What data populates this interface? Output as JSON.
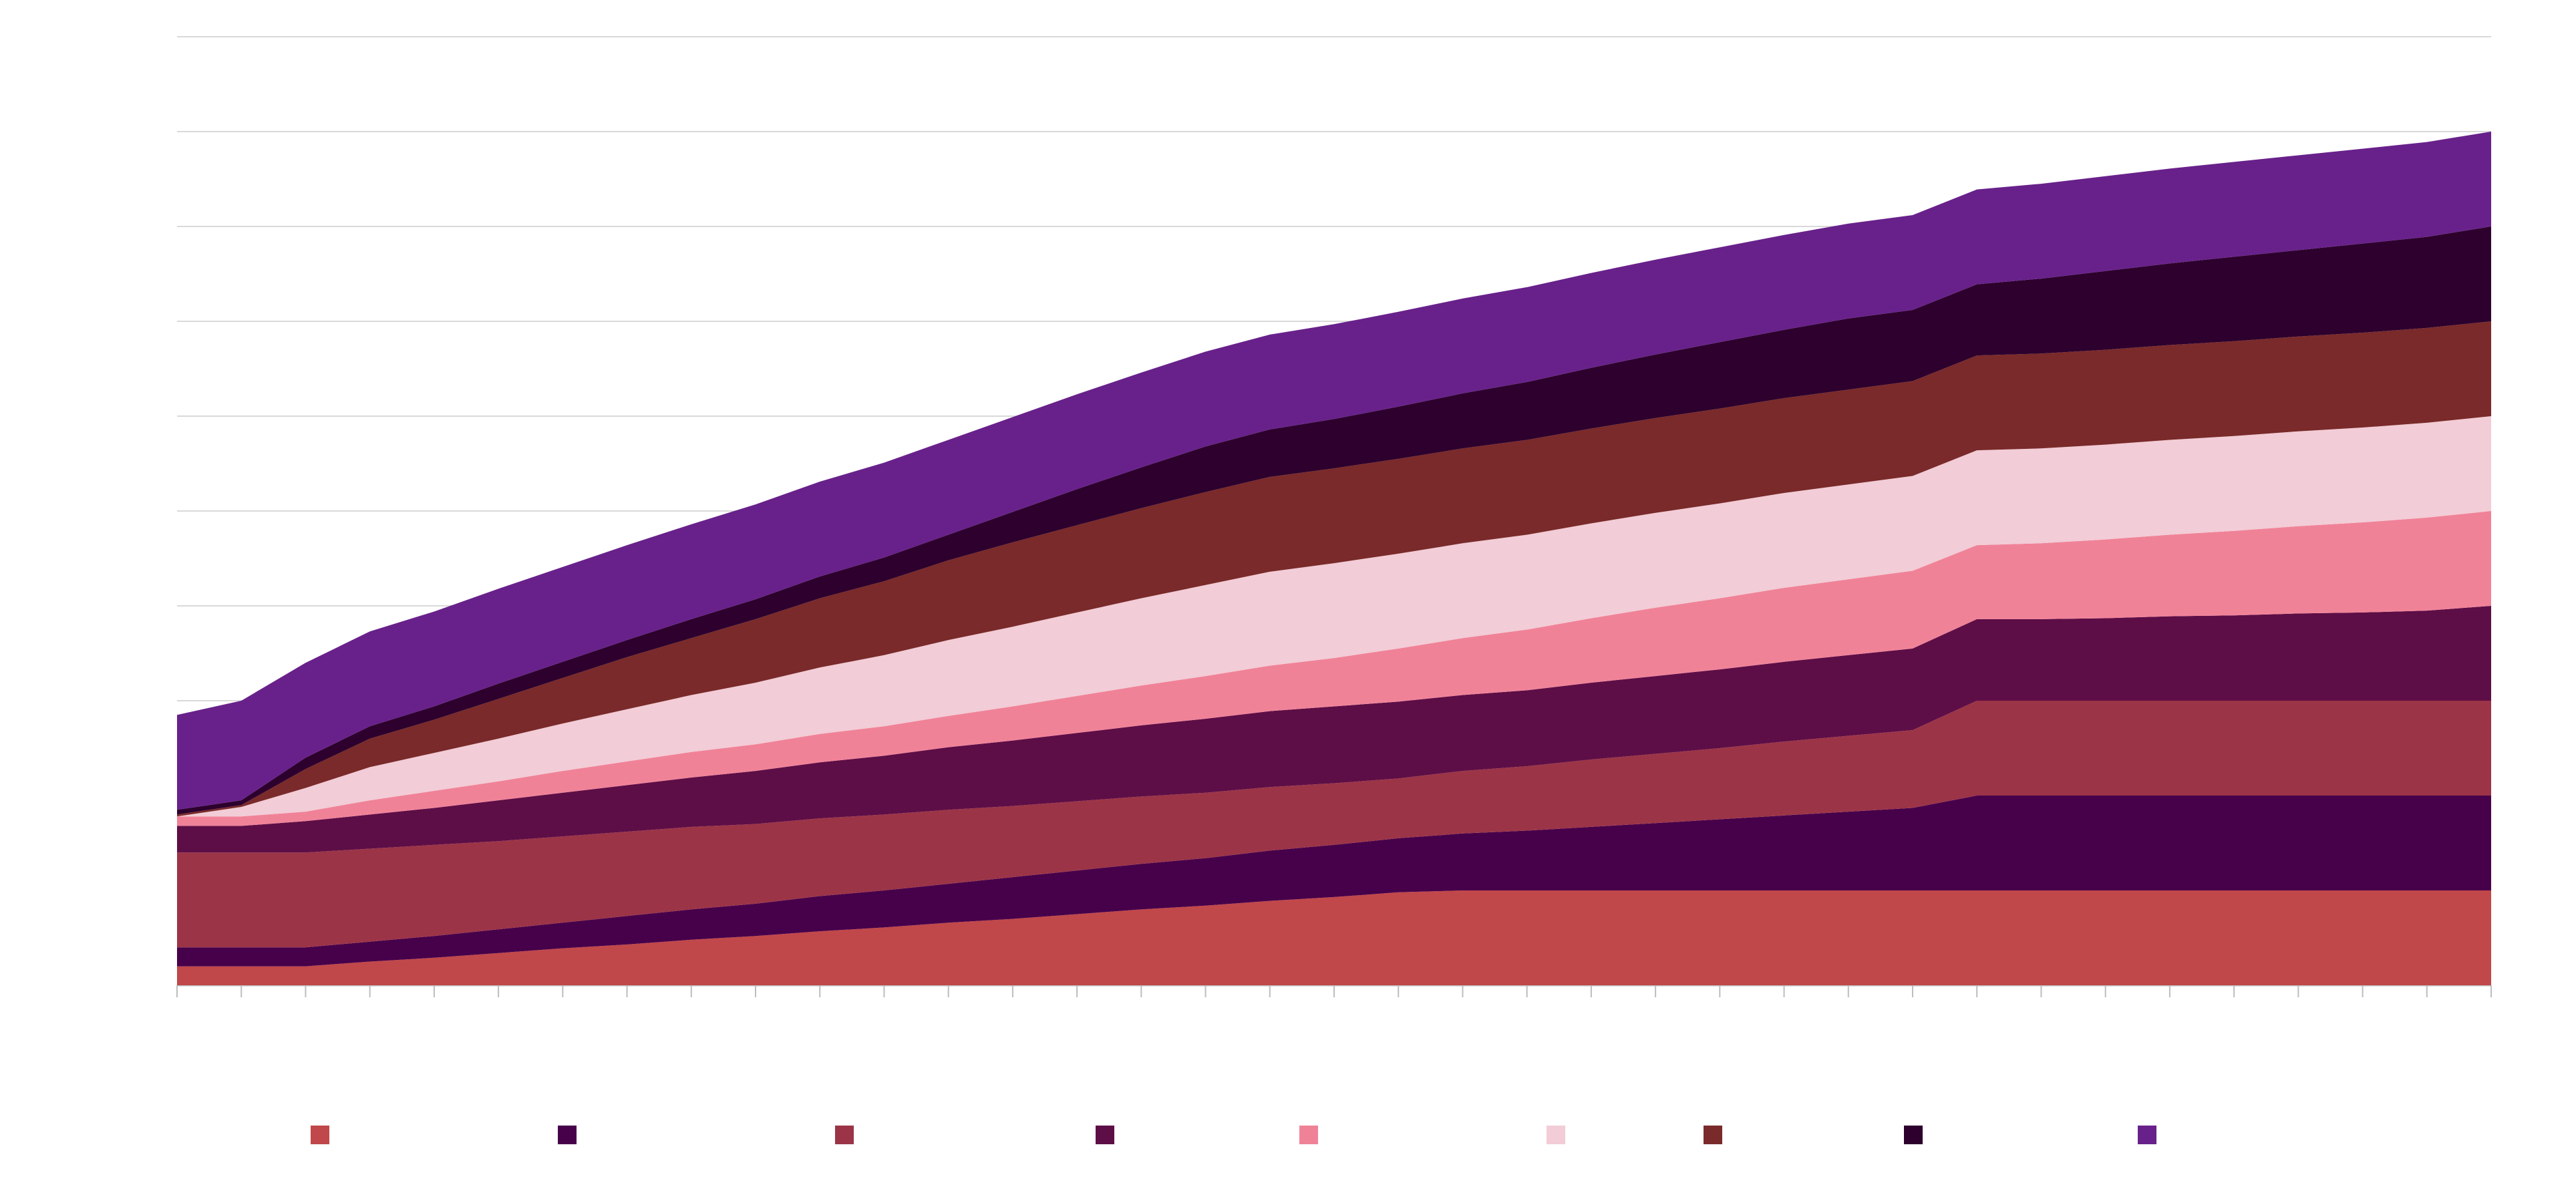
{
  "chart_data": {
    "type": "area",
    "stacked": true,
    "x": [
      0,
      1,
      2,
      3,
      4,
      5,
      6,
      7,
      8,
      9,
      10,
      11,
      12,
      13,
      14,
      15,
      16,
      17,
      18,
      19,
      20,
      21,
      22,
      23,
      24,
      25,
      26,
      27,
      28,
      29,
      30,
      31,
      32,
      33,
      34,
      35,
      36
    ],
    "ylim": [
      0,
      10
    ],
    "grid": true,
    "legend_position": "bottom",
    "series": [
      {
        "color": "#c0474a",
        "values": [
          0.2,
          0.2,
          0.2,
          0.25,
          0.29,
          0.34,
          0.39,
          0.43,
          0.48,
          0.52,
          0.57,
          0.61,
          0.66,
          0.7,
          0.75,
          0.8,
          0.84,
          0.89,
          0.93,
          0.98,
          1,
          1,
          1,
          1,
          1,
          1,
          1,
          1,
          1,
          1,
          1,
          1,
          1,
          1,
          1,
          1,
          1
        ]
      },
      {
        "color": "#47004a",
        "values": [
          0.2,
          0.2,
          0.2,
          0.21,
          0.23,
          0.25,
          0.27,
          0.3,
          0.32,
          0.34,
          0.37,
          0.39,
          0.41,
          0.44,
          0.46,
          0.48,
          0.5,
          0.53,
          0.55,
          0.57,
          0.6,
          0.63,
          0.67,
          0.71,
          0.75,
          0.79,
          0.83,
          0.87,
          1,
          1,
          1,
          1,
          1,
          1,
          1,
          1,
          1
        ]
      },
      {
        "color": "#9c3447",
        "values": [
          1,
          1,
          1,
          0.98,
          0.96,
          0.93,
          0.91,
          0.89,
          0.87,
          0.84,
          0.82,
          0.8,
          0.78,
          0.75,
          0.73,
          0.71,
          0.69,
          0.67,
          0.65,
          0.63,
          0.66,
          0.68,
          0.71,
          0.73,
          0.75,
          0.78,
          0.8,
          0.82,
          1,
          1,
          1,
          1,
          1,
          1,
          1,
          1,
          1
        ]
      },
      {
        "color": "#5e0e46",
        "values": [
          0.28,
          0.28,
          0.33,
          0.36,
          0.39,
          0.43,
          0.46,
          0.49,
          0.52,
          0.56,
          0.59,
          0.62,
          0.66,
          0.69,
          0.72,
          0.75,
          0.78,
          0.8,
          0.81,
          0.81,
          0.8,
          0.8,
          0.81,
          0.82,
          0.83,
          0.84,
          0.85,
          0.86,
          0.86,
          0.86,
          0.87,
          0.89,
          0.9,
          0.92,
          0.93,
          0.95,
          1
        ]
      },
      {
        "color": "#f08298",
        "values": [
          0.1,
          0.1,
          0.1,
          0.15,
          0.18,
          0.2,
          0.23,
          0.25,
          0.27,
          0.28,
          0.3,
          0.31,
          0.33,
          0.36,
          0.39,
          0.42,
          0.45,
          0.48,
          0.51,
          0.56,
          0.6,
          0.64,
          0.68,
          0.72,
          0.75,
          0.78,
          0.8,
          0.82,
          0.78,
          0.8,
          0.83,
          0.86,
          0.89,
          0.92,
          0.95,
          0.98,
          1
        ]
      },
      {
        "color": "#f2ccd6",
        "values": [
          0,
          0.1,
          0.25,
          0.35,
          0.4,
          0.45,
          0.5,
          0.55,
          0.6,
          0.65,
          0.7,
          0.75,
          0.8,
          0.84,
          0.88,
          0.92,
          0.96,
          0.99,
          1,
          1,
          1,
          1,
          1,
          1,
          1,
          1,
          1,
          1,
          1,
          1,
          1,
          1,
          1,
          1,
          1,
          1,
          1
        ]
      },
      {
        "color": "#7a2a2a",
        "values": [
          0.02,
          0.02,
          0.2,
          0.3,
          0.35,
          0.42,
          0.48,
          0.55,
          0.6,
          0.67,
          0.73,
          0.78,
          0.84,
          0.89,
          0.92,
          0.95,
          0.98,
          1,
          1,
          1,
          1,
          1,
          1,
          1,
          1,
          1,
          1,
          1,
          1,
          1,
          1,
          1,
          1,
          1,
          1,
          1,
          1
        ]
      },
      {
        "color": "#2d002d",
        "values": [
          0.05,
          0.05,
          0.12,
          0.13,
          0.14,
          0.16,
          0.17,
          0.18,
          0.2,
          0.21,
          0.23,
          0.25,
          0.27,
          0.32,
          0.38,
          0.43,
          0.48,
          0.5,
          0.52,
          0.55,
          0.58,
          0.61,
          0.64,
          0.67,
          0.7,
          0.72,
          0.75,
          0.75,
          0.75,
          0.79,
          0.83,
          0.86,
          0.89,
          0.91,
          0.94,
          0.96,
          1
        ]
      },
      {
        "color": "#68218a",
        "values": [
          1,
          1.05,
          1,
          1,
          1,
          1,
          1,
          1,
          1,
          1,
          1,
          1,
          1,
          1,
          1,
          1,
          1,
          1,
          1,
          1,
          1,
          1,
          1,
          1,
          1,
          1,
          1,
          1,
          1,
          1,
          1,
          1,
          1,
          1,
          1,
          1,
          1
        ]
      }
    ]
  }
}
